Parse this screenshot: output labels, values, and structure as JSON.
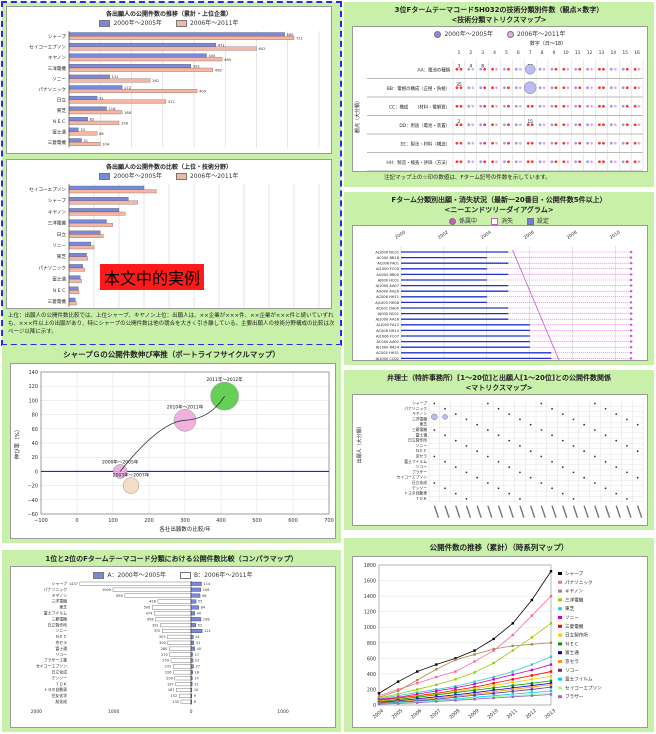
{
  "colors": {
    "panel_bg": "#c9f0a9",
    "accent_blue": "#2a2ae8",
    "bar_blue": "#7b8ad8",
    "bar_red": "#f3b7a3",
    "bubble_green": "#55cc44",
    "bubble_pink": "#eeaadd",
    "axis_line": "#0000ff"
  },
  "panel_a": {
    "note_text": "本文中的実例",
    "caption": "上位：出願人の公開件数比較では、上位シャープ、キヤノン上位：出願人は、××企業が×××件、××企業が×××件と続いていずれも、×××件以上の出願があり、特にシャープの公開件数は他の競合を大きく引き離している。主要出願人の技術分野構成の比較は次ページ以降に示す。",
    "chart1": {
      "title": "各出願人の公開件数の推移（累計・上位企業）",
      "legend": [
        "2000年〜2005年",
        "2006年〜2011年"
      ],
      "categories": [
        "シャープ",
        "セイコーエプソン",
        "キヤノン",
        "三洋電機",
        "ソニー",
        "パナソニック",
        "日立",
        "東芝",
        "ＮＥＣ",
        "富士通",
        "三菱電機"
      ],
      "values1": [
        690,
        470,
        440,
        390,
        130,
        170,
        90,
        120,
        60,
        30,
        40
      ],
      "values2": [
        720,
        600,
        490,
        460,
        260,
        410,
        310,
        170,
        160,
        90,
        100
      ],
      "data_labels1": [
        "688",
        "471",
        "445",
        "392",
        "131",
        "172",
        "91",
        "118",
        "62",
        "33",
        "41"
      ],
      "data_labels2": [
        "721",
        "602",
        "489",
        "458",
        "262",
        "409",
        "312",
        "168",
        "158",
        "88",
        "104"
      ]
    },
    "chart2": {
      "title": "各出願人の公開件数の比較（上位・技術分野）",
      "legend": [
        "2000年〜2005年",
        "2006年〜2011年"
      ],
      "categories": [
        "セイコーエプソン",
        "シャープ",
        "キヤノン",
        "三洋電機",
        "日立",
        "ソニー",
        "東芝",
        "パナソニック",
        "富士通",
        "ＮＥＣ",
        "三菱電機"
      ],
      "values1": [
        120,
        95,
        80,
        60,
        50,
        35,
        28,
        22,
        18,
        15,
        10
      ],
      "values2": [
        140,
        110,
        90,
        70,
        55,
        40,
        30,
        25,
        20,
        16,
        12
      ]
    }
  },
  "panel_b": {
    "title": "3位Fタームテーマコード5H032の技術分類別件数（観点×数字）",
    "subtitle": "<技術分類マトリクスマップ>",
    "legend": [
      "2000年〜2005年",
      "2006年〜2011年"
    ],
    "xaxis_label": "数字（日〜18）",
    "xticks": [
      "1",
      "2",
      "3",
      "4",
      "5",
      "6",
      "7",
      "8",
      "9",
      "10",
      "11",
      "12",
      "13",
      "14",
      "15",
      "16"
    ],
    "ylabel": "観点（大分類）",
    "rows": [
      {
        "label": "AA：電池の種類",
        "values": [
          "3",
          "4",
          "8",
          "",
          "",
          "",
          "10",
          "",
          "",
          "",
          "",
          "",
          "",
          "",
          "",
          ""
        ]
      },
      {
        "label": "BB：電極の構成（正極・負極）",
        "values": [
          "35",
          "",
          "",
          "",
          "",
          "",
          "178",
          "",
          "",
          "",
          "",
          "",
          "",
          "",
          "",
          ""
        ]
      },
      {
        "label": "CC：構成　　（材料・電解質）",
        "values": [
          "",
          "",
          "",
          "",
          "",
          "",
          "",
          "",
          "",
          "",
          "",
          "",
          "",
          "",
          "",
          ""
        ]
      },
      {
        "label": "DD：用途（電池・装置）",
        "values": [
          "2",
          "",
          "",
          "",
          "",
          "",
          "15",
          "",
          "",
          "",
          "",
          "",
          "",
          "",
          "",
          ""
        ]
      },
      {
        "label": "EE：製法・材料（構造）",
        "values": [
          "",
          "",
          "",
          "",
          "",
          "",
          "",
          "",
          "",
          "",
          "",
          "",
          "",
          "",
          "",
          ""
        ]
      },
      {
        "label": "HH：製造・検査・評価（方法）",
        "values": [
          "",
          "",
          "",
          "",
          "",
          "",
          "",
          "",
          "",
          "",
          "",
          "",
          "",
          "",
          "",
          ""
        ]
      }
    ],
    "footnote": "注記マップ上の☆印の数値は、Fターム記号の件数を示しています。"
  },
  "panel_c": {
    "title": "Fターム分類別出願・消失状況（最新一20番目・公開件数5件以上）",
    "subtitle": "<ニーエンドツリーダイアグラム>",
    "legend": [
      "係属中",
      "消失",
      "設定"
    ],
    "xticks": [
      "2000",
      "2002",
      "2004",
      "2006",
      "2008",
      "2010"
    ],
    "categories": [
      "AJ1000 NC01",
      "AC000 BB18",
      "AC006 FA01",
      "AJ1000 FC00",
      "AG000 BB00",
      "AJ000 HC01",
      "AJ1000 AA07",
      "AG000 AA26",
      "AC006 HH11",
      "AJ1000 HH08",
      "AC00C DA00",
      "AJ000 NC01",
      "AJ1000 AA16",
      "AJ1000 FA12",
      "AC006 HH14",
      "AJ1006 FC07",
      "AC000 AA02",
      "AJ1000 RA24",
      "AC000 HH31",
      "AJ1000 CC02"
    ],
    "values": [
      2005,
      2004,
      2005,
      2004,
      2005,
      2004,
      2005,
      2005,
      2004,
      2004,
      2005,
      2005,
      2005,
      2006,
      2006,
      2006,
      2006,
      2006,
      2007,
      2007
    ]
  },
  "panel_d": {
    "title": "シャープＧの公開件数伸び率推（ポートライフサイクルマップ）",
    "xlabel": "各社出願数の比較/年",
    "ylabel": "伸び率（%）",
    "xticks": [
      "−100",
      "0",
      "100",
      "200",
      "300",
      "400",
      "500",
      "600",
      "700"
    ],
    "yticks": [
      "140",
      "120",
      "100",
      "80",
      "60",
      "40",
      "20",
      "0",
      "−20",
      "−40",
      "−60"
    ],
    "chart_data": {
      "type": "scatter",
      "x": [
        120,
        150,
        300,
        410,
        400
      ],
      "y": [
        0,
        -20,
        72,
        106,
        108
      ],
      "point_labels": [
        "2000年〜2005年",
        "2003年〜2007年",
        "2010年〜2011年",
        "2011年〜2012年",
        ""
      ],
      "xlim": [
        -100,
        700
      ],
      "ylim": [
        -60,
        140
      ]
    }
  },
  "panel_e": {
    "title": "弁理士（特許事務所）[1〜20位]と出願人[1〜20位]との公開件数関係",
    "subtitle": "<マトリクスマップ>",
    "ylabel": "出願人（大分類）",
    "rows": [
      "シャープ",
      "パナソニック",
      "キヤノン",
      "三洋電機",
      "東芝",
      "三菱電機",
      "富士通",
      "日立製作所",
      "ソニー",
      "ＮＥＣ",
      "京セラ",
      "富士フイルム",
      "リコー",
      "ブラザー",
      "セイコーエプソン",
      "日立化成",
      "デンソー",
      "トヨタ自動車",
      "ＴＤＫ"
    ],
    "col_count": 20
  },
  "panel_f": {
    "title": "1位と2位のFタームテーマコード分類における公開件数比較（コンパラマップ）",
    "legend": [
      "A：2000年〜2005年",
      "B：2006年〜2011年"
    ],
    "chart_data": {
      "type": "bar",
      "categories": [
        "シャープ",
        "パナソニック",
        "キヤノン",
        "三洋電機",
        "東芝",
        "富士フイルム",
        "三菱電機",
        "日立製作所",
        "ソニー",
        "ＮＥＣ",
        "京セラ",
        "富士通",
        "リコー",
        "ブラザー工業",
        "セイコーエプソン",
        "日立化成",
        "デンソー",
        "ＴＤＫ",
        "トヨタ自動車",
        "住友化学",
        "旭化成"
      ],
      "left_values": [
        1437,
        1009,
        855,
        428,
        500,
        474,
        458,
        391,
        370,
        303,
        300,
        280,
        275,
        259,
        231,
        226,
        209,
        197,
        187,
        152,
        130
      ],
      "right_values": [
        114,
        106,
        98,
        55,
        84,
        40,
        108,
        52,
        121,
        24,
        31,
        40,
        17,
        22,
        27,
        18,
        14,
        12,
        10,
        9,
        8
      ],
      "left_labels": [
        "1437",
        "1009",
        "855",
        "428",
        "500",
        "474",
        "458",
        "391",
        "370",
        "303",
        "300",
        "280",
        "275",
        "259",
        "231",
        "226",
        "209",
        "197",
        "187",
        "152",
        "130"
      ],
      "right_labels": [
        "114",
        "106",
        "98",
        "55",
        "84",
        "40",
        "108",
        "52",
        "121",
        "24",
        "31",
        "40",
        "17",
        "22",
        "27",
        "18",
        "14",
        "12",
        "10",
        "9",
        "8"
      ],
      "xticks": [
        "2000",
        "1000",
        "0",
        "1000",
        "2000"
      ]
    }
  },
  "panel_g": {
    "title": "公開件数の推移（累計）（時系列マップ）",
    "chart_data": {
      "type": "line",
      "x": [
        "2004",
        "2005",
        "2006",
        "2007",
        "2008",
        "2009",
        "2010",
        "2011",
        "2012",
        "2013"
      ],
      "yticks": [
        "1800",
        "1600",
        "1400",
        "1200",
        "1000",
        "800",
        "600",
        "400",
        "200",
        "0"
      ],
      "ylim": [
        0,
        1800
      ],
      "series": [
        {
          "name": "シャープ",
          "color": "#000000",
          "values": [
            150,
            300,
            430,
            520,
            600,
            700,
            850,
            1050,
            1350,
            1720
          ]
        },
        {
          "name": "パナソニック",
          "color": "#ff6699",
          "values": [
            120,
            200,
            280,
            360,
            430,
            560,
            700,
            900,
            1150,
            1400
          ]
        },
        {
          "name": "キヤノン",
          "color": "#b08850",
          "values": [
            100,
            180,
            320,
            460,
            580,
            650,
            720,
            760,
            780,
            800
          ]
        },
        {
          "name": "三洋電機",
          "color": "#99cc00",
          "values": [
            90,
            140,
            200,
            260,
            330,
            420,
            540,
            700,
            870,
            1050
          ]
        },
        {
          "name": "東芝",
          "color": "#33cccc",
          "values": [
            80,
            120,
            160,
            200,
            240,
            300,
            360,
            430,
            520,
            620
          ]
        },
        {
          "name": "ソニー",
          "color": "#cc00cc",
          "values": [
            70,
            100,
            140,
            180,
            220,
            270,
            330,
            390,
            450,
            520
          ]
        },
        {
          "name": "三菱電機",
          "color": "#ff0000",
          "values": [
            60,
            90,
            120,
            150,
            190,
            230,
            280,
            330,
            380,
            430
          ]
        },
        {
          "name": "日立製作所",
          "color": "#ffcc00",
          "values": [
            50,
            80,
            110,
            140,
            170,
            210,
            250,
            290,
            330,
            370
          ]
        },
        {
          "name": "ＮＥＣ",
          "color": "#009900",
          "values": [
            40,
            70,
            100,
            130,
            160,
            190,
            220,
            250,
            280,
            310
          ]
        },
        {
          "name": "富士通",
          "color": "#0000cc",
          "values": [
            30,
            55,
            80,
            105,
            130,
            160,
            190,
            220,
            250,
            280
          ]
        },
        {
          "name": "京セラ",
          "color": "#ff9900",
          "values": [
            25,
            45,
            65,
            90,
            115,
            140,
            170,
            200,
            230,
            260
          ]
        },
        {
          "name": "リコー",
          "color": "#663399",
          "values": [
            20,
            35,
            55,
            75,
            100,
            125,
            150,
            175,
            200,
            230
          ]
        },
        {
          "name": "富士フイルム",
          "color": "#00ccff",
          "values": [
            15,
            30,
            45,
            60,
            80,
            100,
            120,
            140,
            160,
            180
          ]
        },
        {
          "name": "セイコーエプソン",
          "color": "#99ff99",
          "values": [
            12,
            25,
            40,
            55,
            70,
            88,
            105,
            120,
            135,
            150
          ]
        },
        {
          "name": "ブラザー",
          "color": "#9966cc",
          "values": [
            10,
            20,
            30,
            45,
            60,
            75,
            90,
            105,
            120,
            135
          ]
        }
      ]
    }
  }
}
